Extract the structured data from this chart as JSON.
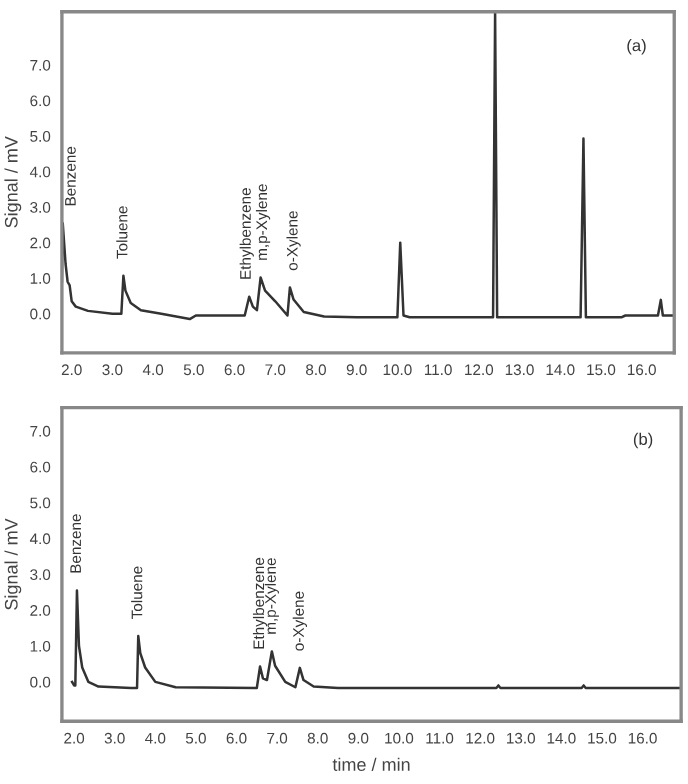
{
  "chart_data": [
    {
      "type": "line",
      "ylabel": "Signal / mV",
      "xlim": [
        1.76,
        16.8
      ],
      "ylim": [
        -1.1,
        8.5
      ],
      "grid": false,
      "marker": "none",
      "line_style": "solid",
      "xticks": [
        {
          "value": 2,
          "label": "2.0"
        },
        {
          "value": 3,
          "label": "3.0"
        },
        {
          "value": 4,
          "label": "4.0"
        },
        {
          "value": 5,
          "label": "5.0"
        },
        {
          "value": 6,
          "label": "6.0"
        },
        {
          "value": 7,
          "label": "7.0"
        },
        {
          "value": 8,
          "label": "8.0"
        },
        {
          "value": 9,
          "label": "9.0"
        },
        {
          "value": 10,
          "label": "10.0"
        },
        {
          "value": 11,
          "label": "11.0"
        },
        {
          "value": 12,
          "label": "12.0"
        },
        {
          "value": 13,
          "label": "13.0"
        },
        {
          "value": 14,
          "label": "14.0"
        },
        {
          "value": 15,
          "label": "15.0"
        },
        {
          "value": 16,
          "label": "16.0"
        }
      ],
      "yticks": [
        {
          "value": 0,
          "label": "0.0"
        },
        {
          "value": 1,
          "label": "1.0"
        },
        {
          "value": 2,
          "label": "2.0"
        },
        {
          "value": 3,
          "label": "3.0"
        },
        {
          "value": 4,
          "label": "4.0"
        },
        {
          "value": 5,
          "label": "5.0"
        },
        {
          "value": 6,
          "label": "6.0"
        },
        {
          "value": 7,
          "label": "7.0"
        }
      ],
      "series": [
        {
          "color": "#333333",
          "x": [
            1.76,
            1.78,
            1.85,
            1.9,
            1.95,
            2.0,
            2.1,
            2.4,
            3.0,
            3.22,
            3.27,
            3.32,
            3.45,
            3.7,
            4.2,
            4.9,
            5.05,
            5.6,
            6.25,
            6.36,
            6.45,
            6.55,
            6.64,
            6.75,
            7.0,
            7.3,
            7.36,
            7.45,
            7.7,
            8.2,
            9.0,
            10.0,
            10.07,
            10.15,
            10.3,
            12.35,
            12.4,
            12.45,
            14.5,
            14.57,
            14.63,
            15.5,
            15.6,
            16.4,
            16.47,
            16.52,
            16.8
          ],
          "values": [
            0.9,
            2.55,
            1.4,
            0.9,
            0.8,
            0.35,
            0.2,
            0.08,
            0.0,
            0.0,
            1.07,
            0.65,
            0.3,
            0.1,
            0.0,
            -0.15,
            -0.05,
            -0.05,
            -0.05,
            0.48,
            0.2,
            0.1,
            1.02,
            0.65,
            0.35,
            -0.05,
            0.74,
            0.4,
            0.05,
            -0.08,
            -0.1,
            -0.1,
            2.0,
            -0.05,
            -0.1,
            -0.1,
            8.5,
            -0.1,
            -0.1,
            4.93,
            -0.1,
            -0.1,
            -0.05,
            -0.05,
            0.39,
            -0.05,
            -0.05
          ]
        }
      ],
      "annotations": [
        {
          "text": "Benzene",
          "x": 2.0,
          "y": 2.55
        },
        {
          "text": "Toluene",
          "x": 3.27,
          "y": 1.07
        },
        {
          "text": "Ethylbenzene",
          "x": 6.3,
          "y": 0.48
        },
        {
          "text": "m,p-Xylene",
          "x": 6.7,
          "y": 1.02
        },
        {
          "text": "o-Xylene",
          "x": 7.45,
          "y": 0.74
        },
        "(a)"
      ]
    },
    {
      "type": "line",
      "ylabel": "Signal / mV",
      "xlabel": "time / min",
      "xlim": [
        1.7,
        16.95
      ],
      "ylim": [
        -1.1,
        7.65
      ],
      "grid": false,
      "marker": "none",
      "line_style": "solid",
      "xticks": [
        {
          "value": 2,
          "label": "2.0"
        },
        {
          "value": 3,
          "label": "3.0"
        },
        {
          "value": 4,
          "label": "4.0"
        },
        {
          "value": 5,
          "label": "5.0"
        },
        {
          "value": 6,
          "label": "6.0"
        },
        {
          "value": 7,
          "label": "7.0"
        },
        {
          "value": 8,
          "label": "8.0"
        },
        {
          "value": 9,
          "label": "9.0"
        },
        {
          "value": 10,
          "label": "10.0"
        },
        {
          "value": 11,
          "label": "11.0"
        },
        {
          "value": 12,
          "label": "12.0"
        },
        {
          "value": 13,
          "label": "13.0"
        },
        {
          "value": 14,
          "label": "14.0"
        },
        {
          "value": 15,
          "label": "15.0"
        },
        {
          "value": 16,
          "label": "16.0"
        }
      ],
      "yticks": [
        {
          "value": 0,
          "label": "0.0"
        },
        {
          "value": 1,
          "label": "1.0"
        },
        {
          "value": 2,
          "label": "2.0"
        },
        {
          "value": 3,
          "label": "3.0"
        },
        {
          "value": 4,
          "label": "4.0"
        },
        {
          "value": 5,
          "label": "5.0"
        },
        {
          "value": 6,
          "label": "6.0"
        },
        {
          "value": 7,
          "label": "7.0"
        }
      ],
      "series": [
        {
          "color": "#333333",
          "x": [
            1.95,
            2.0,
            2.03,
            2.07,
            2.12,
            2.2,
            2.35,
            2.6,
            3.4,
            3.55,
            3.58,
            3.63,
            3.75,
            4.0,
            4.5,
            6.5,
            6.58,
            6.65,
            6.75,
            6.87,
            6.95,
            7.2,
            7.45,
            7.56,
            7.65,
            7.9,
            8.5,
            12.4,
            12.45,
            12.5,
            14.5,
            14.55,
            14.6,
            16.95
          ],
          "values": [
            0.0,
            -0.1,
            -0.1,
            2.55,
            1.0,
            0.4,
            0.0,
            -0.13,
            -0.17,
            -0.17,
            1.28,
            0.8,
            0.4,
            0.0,
            -0.15,
            -0.17,
            0.43,
            0.1,
            0.05,
            0.85,
            0.45,
            0.0,
            -0.15,
            0.39,
            0.05,
            -0.13,
            -0.17,
            -0.17,
            -0.1,
            -0.17,
            -0.17,
            -0.1,
            -0.17,
            -0.17
          ]
        }
      ],
      "annotations": [
        {
          "text": "Benzene",
          "x": 2.07,
          "y": 2.55
        },
        {
          "text": "Toluene",
          "x": 3.58,
          "y": 1.28
        },
        {
          "text": "Ethylbenzene",
          "x": 6.58,
          "y": 0.43
        },
        {
          "text": "m,p-Xylene",
          "x": 6.87,
          "y": 0.85
        },
        {
          "text": "o-Xylene",
          "x": 7.56,
          "y": 0.39
        },
        "(b)"
      ]
    }
  ]
}
